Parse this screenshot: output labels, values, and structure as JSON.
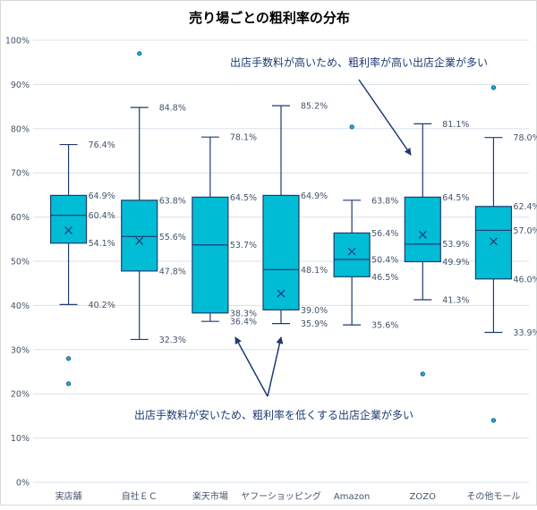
{
  "chart_data": {
    "type": "box",
    "title": "売り場ごとの粗利率の分布",
    "xlabel": "",
    "ylabel": "",
    "ylim": [
      0,
      100
    ],
    "yticks": [
      "0%",
      "10%",
      "20%",
      "30%",
      "40%",
      "50%",
      "60%",
      "70%",
      "80%",
      "90%",
      "100%"
    ],
    "grid": true,
    "colors": {
      "box_fill": "#00bcd4",
      "box_edge": "#1f3b73",
      "label": "#44546a",
      "grid": "#d9e1ec",
      "annotation": "#1f3b73"
    },
    "categories": [
      "実店舗",
      "自社ＥＣ",
      "楽天市場",
      "ヤフーショッピング",
      "Amazon",
      "ZOZO",
      "その他モール"
    ],
    "boxes": [
      {
        "min": 40.2,
        "q1": 54.1,
        "median": 60.4,
        "q3": 64.9,
        "max": 76.4,
        "mean": 57,
        "outliers": [
          28,
          22.3
        ],
        "labels": {
          "max": "76.4%",
          "q3": "64.9%",
          "median": "60.4%",
          "q1": "54.1%",
          "min": "40.2%"
        }
      },
      {
        "min": 32.3,
        "q1": 47.8,
        "median": 55.6,
        "q3": 63.8,
        "max": 84.8,
        "mean": 54.6,
        "outliers": [
          97
        ],
        "labels": {
          "max": "84.8%",
          "q3": "63.8%",
          "median": "55.6%",
          "q1": "47.8%",
          "min": "32.3%"
        }
      },
      {
        "min": 36.4,
        "q1": 38.3,
        "median": 53.7,
        "q3": 64.5,
        "max": 78.1,
        "mean": null,
        "outliers": [],
        "labels": {
          "max": "78.1%",
          "q3": "64.5%",
          "median": "53.7%",
          "q1": "38.3%",
          "min": "36.4%"
        }
      },
      {
        "min": 35.9,
        "q1": 39.0,
        "median": 48.1,
        "q3": 64.9,
        "max": 85.2,
        "mean": 42.7,
        "outliers": [],
        "labels": {
          "max": "85.2%",
          "q3": "64.9%",
          "median": "48.1%",
          "q1": "39.0%",
          "min": "35.9%"
        }
      },
      {
        "min": 35.6,
        "q1": 46.5,
        "median": 50.4,
        "q3": 56.4,
        "max": 63.8,
        "mean": 52.2,
        "outliers": [
          80.4
        ],
        "labels": {
          "max": "63.8%",
          "q3": "56.4%",
          "median": "50.4%",
          "q1": "46.5%",
          "min": "35.6%"
        }
      },
      {
        "min": 41.3,
        "q1": 49.9,
        "median": 53.9,
        "q3": 64.5,
        "max": 81.1,
        "mean": 56,
        "outliers": [
          24.5
        ],
        "labels": {
          "max": "81.1%",
          "q3": "64.5%",
          "median": "53.9%",
          "q1": "49.9%",
          "min": "41.3%"
        }
      },
      {
        "min": 33.9,
        "q1": 46.0,
        "median": 57.0,
        "q3": 62.4,
        "max": 78.0,
        "mean": 54.5,
        "outliers": [
          89.3,
          14
        ],
        "labels": {
          "max": "78.0%",
          "q3": "62.4%",
          "median": "57.0%",
          "q1": "46.0%",
          "min": "33.9%"
        }
      }
    ],
    "annotations": [
      {
        "text": "出店手数料が高いため、粗利率が高い出店企業が多い"
      },
      {
        "text": "出店手数料が安いため、粗利率を低くする出店企業が多い"
      }
    ]
  }
}
